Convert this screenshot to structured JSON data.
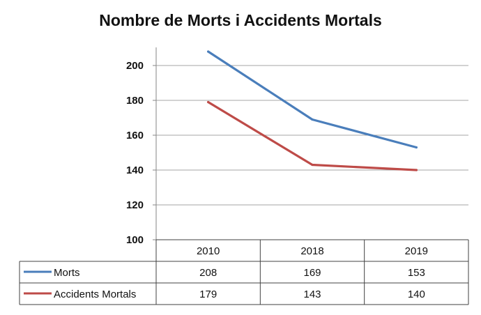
{
  "chart_data": {
    "type": "line",
    "title": "Nombre de Morts i Accidents Mortals",
    "categories": [
      "2010",
      "2018",
      "2019"
    ],
    "series": [
      {
        "name": "Morts",
        "values": [
          208,
          169,
          153
        ],
        "value_labels": [
          "208",
          "169",
          "153"
        ],
        "color": "#4a7ebb"
      },
      {
        "name": "Accidents Mortals",
        "values": [
          179,
          143,
          140
        ],
        "value_labels": [
          "179",
          "143",
          "140"
        ],
        "color": "#be4b48"
      }
    ],
    "yticks": [
      "100",
      "120",
      "140",
      "160",
      "180",
      "200"
    ],
    "ylim": [
      100,
      210
    ],
    "grid": true,
    "legend": "data-table"
  }
}
